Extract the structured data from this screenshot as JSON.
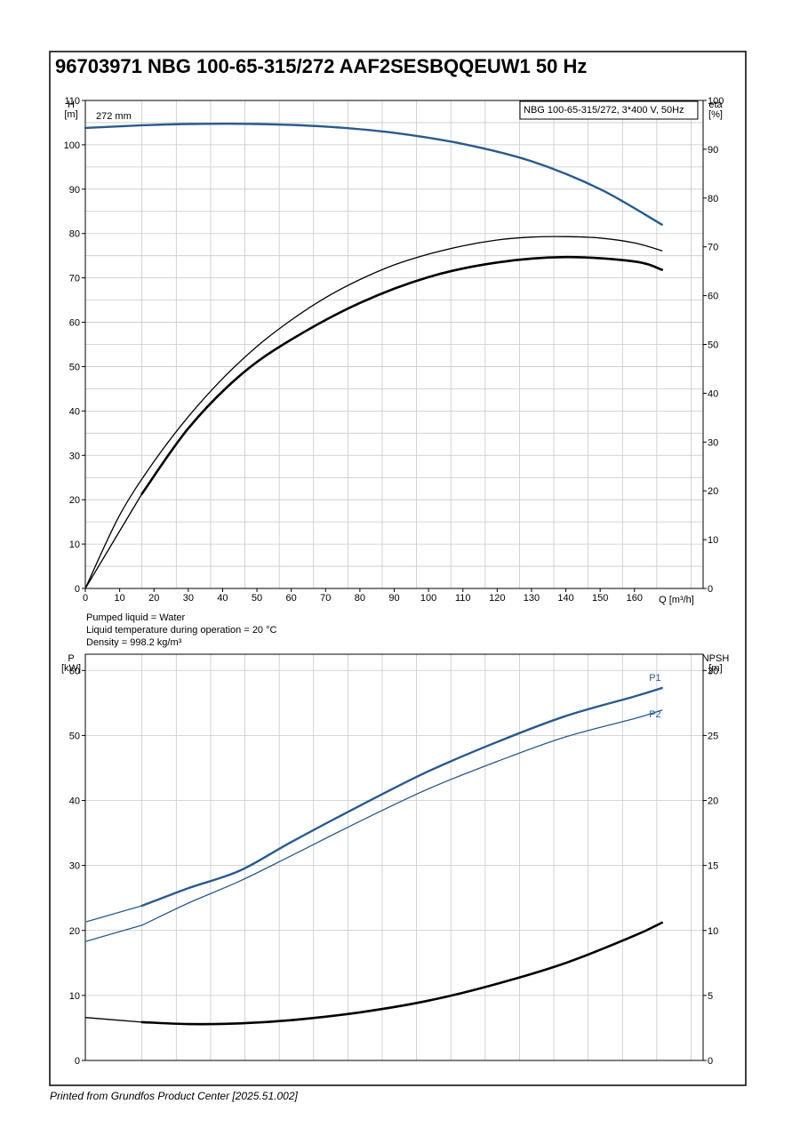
{
  "title": "96703971 NBG 100-65-315/272 AAF2SESBQQEUW1 50 Hz",
  "footer": "Printed from Grundfos Product Center [2025.51.002]",
  "colors": {
    "blue": "#2a5a8c",
    "black": "#000000",
    "grid": "#c8c8c8"
  },
  "liquid_info": [
    "Pumped liquid = Water",
    "Liquid temperature during operation = 20 °C",
    "Density = 998.2 kg/m³"
  ],
  "chart_data": [
    {
      "type": "line",
      "legend": "NBG 100-65-315/272, 3*400 V, 50Hz",
      "legend_position": "top-right",
      "grid": true,
      "x_unit_label": "Q [m³/h]",
      "x_ticks": [
        0,
        10,
        20,
        30,
        40,
        50,
        60,
        70,
        80,
        90,
        100,
        110,
        120,
        130,
        140,
        150,
        160
      ],
      "xlim": [
        0,
        180
      ],
      "y_left_label": [
        "H",
        "[m]"
      ],
      "y_left_ticks": [
        0,
        10,
        20,
        30,
        40,
        50,
        60,
        70,
        80,
        90,
        100,
        110
      ],
      "ylim_left": [
        0,
        110
      ],
      "y_right_label": [
        "eta",
        "[%]"
      ],
      "y_right_ticks": [
        0,
        10,
        20,
        30,
        40,
        50,
        60,
        70,
        80,
        90,
        100
      ],
      "ylim_right": [
        0,
        100
      ],
      "series": [
        {
          "name": "272 mm",
          "axis": "left",
          "color": "#2a5a8c",
          "width": 2.4,
          "x": [
            0,
            16.5
          ],
          "y": [
            103.8,
            104.4
          ]
        },
        {
          "axis": "left",
          "color": "#2a5a8c",
          "width": 2.4,
          "x": [
            16.5,
            30,
            50,
            70,
            90,
            110,
            130,
            150,
            168
          ],
          "y": [
            104.4,
            104.7,
            104.7,
            104.1,
            102.7,
            100.2,
            96.3,
            90.0,
            82.0
          ]
        },
        {
          "axis": "right",
          "color": "#000000",
          "width": 1.3,
          "x": [
            0,
            10,
            20,
            30,
            40,
            50,
            60,
            70,
            80,
            90,
            100,
            110,
            120,
            130,
            140,
            150,
            160,
            168
          ],
          "y": [
            0,
            15.0,
            26.0,
            35.2,
            43.0,
            49.6,
            55.0,
            59.6,
            63.3,
            66.3,
            68.5,
            70.2,
            71.4,
            72.0,
            72.1,
            71.8,
            70.8,
            69.2
          ]
        },
        {
          "axis": "right",
          "color": "#000000",
          "width": 1.3,
          "x": [
            0,
            16.5
          ],
          "y": [
            0,
            19.4
          ]
        },
        {
          "axis": "right",
          "color": "#000000",
          "width": 2.6,
          "x": [
            16.5,
            30,
            45,
            60,
            80,
            100,
            120,
            140,
            160,
            168
          ],
          "y": [
            19.4,
            32.8,
            43.6,
            51.0,
            58.5,
            63.8,
            66.8,
            67.9,
            67.0,
            65.3
          ]
        }
      ]
    },
    {
      "type": "line",
      "grid": true,
      "xlim": [
        0,
        180
      ],
      "y_left_label": [
        "P",
        "[kW]"
      ],
      "y_left_ticks": [
        0,
        10,
        20,
        30,
        40,
        50,
        60
      ],
      "ylim_left": [
        0,
        62.5
      ],
      "y_right_label": [
        "NPSH",
        "[m]"
      ],
      "y_right_ticks": [
        0,
        5,
        10,
        15,
        20,
        25,
        30
      ],
      "ylim_right": [
        0,
        31.25
      ],
      "series": [
        {
          "axis": "left",
          "color": "#2a5a8c",
          "width": 1.3,
          "x": [
            0,
            16.5
          ],
          "y": [
            21.3,
            23.8
          ]
        },
        {
          "name": "P1",
          "axis": "left",
          "color": "#2a5a8c",
          "width": 2.4,
          "x": [
            16.5,
            30,
            45,
            60,
            80,
            100,
            120,
            140,
            160,
            168
          ],
          "y": [
            23.8,
            26.5,
            29.2,
            33.6,
            39.2,
            44.5,
            49.0,
            53.0,
            56.0,
            57.3
          ]
        },
        {
          "axis": "left",
          "color": "#2a5a8c",
          "width": 1.3,
          "x": [
            0,
            16.5
          ],
          "y": [
            18.3,
            20.8
          ]
        },
        {
          "name": "P2",
          "axis": "left",
          "color": "#2a5a8c",
          "width": 1.3,
          "x": [
            16.5,
            30,
            45,
            60,
            80,
            100,
            120,
            140,
            160,
            168
          ],
          "y": [
            20.8,
            24.2,
            27.6,
            31.5,
            36.8,
            41.8,
            46.0,
            49.8,
            52.6,
            53.9
          ]
        },
        {
          "axis": "right",
          "color": "#000000",
          "width": 1.3,
          "x": [
            0,
            16.5
          ],
          "y": [
            3.3,
            2.95
          ]
        },
        {
          "axis": "right",
          "color": "#000000",
          "width": 2.6,
          "x": [
            16.5,
            30,
            45,
            60,
            80,
            100,
            120,
            140,
            160,
            168
          ],
          "y": [
            2.95,
            2.8,
            2.85,
            3.1,
            3.7,
            4.6,
            5.9,
            7.5,
            9.6,
            10.6
          ]
        }
      ]
    }
  ]
}
